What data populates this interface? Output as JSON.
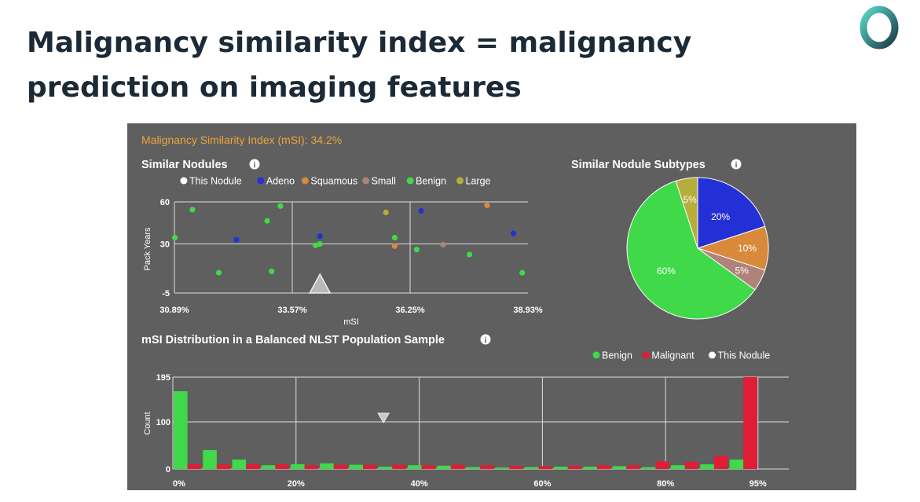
{
  "slide": {
    "title": "Malignancy similarity index = malignancy prediction on imaging features"
  },
  "colors": {
    "panel_bg": "#5f5f5f",
    "this_nodule": "#ffffff",
    "adeno": "#2330d6",
    "squamous": "#d8893a",
    "small": "#b0827a",
    "benign": "#3fd94a",
    "large": "#b7ad3a",
    "malignant": "#e01d34",
    "msi_text": "#f0a33a",
    "title": "#1b2a36"
  },
  "header": {
    "msi_label": "Malignancy Similarity Index (mSI): 34.2%"
  },
  "info_icon_glyph": "i",
  "chart_data": [
    {
      "type": "scatter",
      "title": "Similar Nodules",
      "xlabel": "mSI",
      "ylabel": "Pack Years",
      "xlim": [
        30.89,
        38.93
      ],
      "ylim": [
        -5,
        60
      ],
      "x_ticks": [
        "30.89%",
        "33.57%",
        "36.25%",
        "38.93%"
      ],
      "x_tick_values": [
        30.89,
        33.57,
        36.25,
        38.93
      ],
      "y_ticks": [
        "60",
        "30",
        "-5"
      ],
      "y_tick_values": [
        60,
        30,
        -5
      ],
      "grid": true,
      "legend": [
        "This Nodule",
        "Adeno",
        "Squamous",
        "Small",
        "Benign",
        "Large"
      ],
      "legend_placement": "top",
      "series": [
        {
          "name": "This Nodule",
          "marker": "triangle",
          "points": [
            [
              34.2,
              -5
            ]
          ]
        },
        {
          "name": "Adeno",
          "points": [
            [
              32.3,
              33
            ],
            [
              34.2,
              35.5
            ],
            [
              36.5,
              53.5
            ],
            [
              38.6,
              37.5
            ]
          ]
        },
        {
          "name": "Squamous",
          "points": [
            [
              35.9,
              28.5
            ],
            [
              38.0,
              57.5
            ]
          ]
        },
        {
          "name": "Small",
          "points": [
            [
              37.0,
              29.5
            ]
          ]
        },
        {
          "name": "Benign",
          "points": [
            [
              30.9,
              34.5
            ],
            [
              31.3,
              54.5
            ],
            [
              31.9,
              9.5
            ],
            [
              33.0,
              46.5
            ],
            [
              33.1,
              10.5
            ],
            [
              33.3,
              57
            ],
            [
              34.1,
              29
            ],
            [
              34.2,
              30
            ],
            [
              35.9,
              34.5
            ],
            [
              36.4,
              26
            ],
            [
              37.6,
              22.5
            ],
            [
              38.8,
              9.5
            ]
          ]
        },
        {
          "name": "Large",
          "points": [
            [
              35.7,
              52.5
            ]
          ]
        }
      ]
    },
    {
      "type": "pie",
      "title": "Similar Nodule Subtypes",
      "start_angle_deg": 0,
      "slices": [
        {
          "name": "Adeno",
          "value": 20,
          "label": "20%"
        },
        {
          "name": "Squamous",
          "value": 10,
          "label": "10%"
        },
        {
          "name": "Small",
          "value": 5,
          "label": "5%"
        },
        {
          "name": "Benign",
          "value": 60,
          "label": "60%"
        },
        {
          "name": "Large",
          "value": 5,
          "label": "5%"
        }
      ]
    },
    {
      "type": "bar",
      "title": "mSI Distribution in a Balanced NLST Population Sample",
      "xlabel": "",
      "ylabel": "Count",
      "xlim": [
        0,
        100
      ],
      "ylim": [
        0,
        195
      ],
      "x_ticks": [
        "0%",
        "20%",
        "40%",
        "60%",
        "80%",
        "95%"
      ],
      "x_tick_values": [
        0,
        20,
        40,
        60,
        80,
        95
      ],
      "y_ticks": [
        "195",
        "100",
        "0"
      ],
      "y_tick_values": [
        195,
        100,
        0
      ],
      "grid": true,
      "legend": [
        "Benign",
        "Malignant",
        "This Nodule"
      ],
      "legend_placement": "top-right",
      "this_nodule_msi": 34.2,
      "categories": [
        "0-4.75",
        "4.75-9.5",
        "9.5-14.25",
        "14.25-19",
        "19-23.75",
        "23.75-28.5",
        "28.5-33.25",
        "33.25-38",
        "38-42.75",
        "42.75-47.5",
        "47.5-52.25",
        "52.25-57",
        "57-61.75",
        "61.75-66.5",
        "66.5-71.25",
        "71.25-76",
        "76-80.75",
        "80.75-85.5",
        "85.5-90.25",
        "90.25-95"
      ],
      "series": [
        {
          "name": "Benign",
          "values": [
            165,
            40,
            20,
            8,
            10,
            12,
            9,
            5,
            8,
            7,
            4,
            3,
            4,
            5,
            5,
            6,
            4,
            8,
            10,
            20
          ]
        },
        {
          "name": "Malignant",
          "values": [
            10,
            10,
            10,
            10,
            8,
            9,
            9,
            9,
            8,
            9,
            8,
            7,
            6,
            7,
            8,
            8,
            16,
            15,
            28,
            195
          ]
        }
      ]
    }
  ]
}
